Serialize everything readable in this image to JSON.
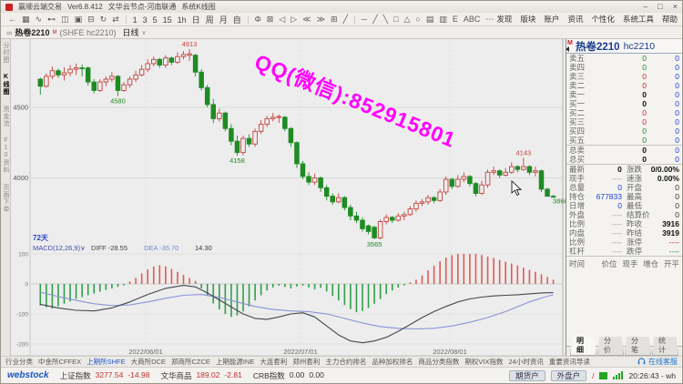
{
  "titlebar": {
    "app": "赢顺云端交易",
    "version": "Ver6.8.412",
    "node": "文华云节点-河南联通",
    "layout": "系统K线图",
    "min": "–",
    "max": "□",
    "close": "×"
  },
  "toolbar": {
    "left_icons": [
      {
        "name": "back-icon",
        "glyph": "←"
      },
      {
        "name": "layout-grid-icon",
        "glyph": "▦"
      },
      {
        "name": "trend-icon",
        "glyph": "∿"
      },
      {
        "name": "link-icon",
        "glyph": "⊷"
      },
      {
        "name": "screenshot-icon",
        "glyph": "◫"
      },
      {
        "name": "image-icon",
        "glyph": "▣"
      },
      {
        "name": "save-icon",
        "glyph": "⊟"
      },
      {
        "name": "refresh-icon",
        "glyph": "↻"
      },
      {
        "name": "compare-icon",
        "glyph": "⇄"
      }
    ],
    "periods": [
      "1",
      "3",
      "5",
      "15",
      "1h",
      "日",
      "周",
      "月",
      "自"
    ],
    "mid_icons": [
      {
        "name": "zoom-icon",
        "glyph": "Φ"
      },
      {
        "name": "crosshair-icon",
        "glyph": "⊠"
      },
      {
        "name": "prev-icon",
        "glyph": "◁"
      },
      {
        "name": "next-icon",
        "glyph": "▷"
      },
      {
        "name": "zoom-out-icon",
        "glyph": "≪"
      },
      {
        "name": "zoom-in-icon",
        "glyph": "≫"
      },
      {
        "name": "grid-icon",
        "glyph": "⊞"
      },
      {
        "name": "line-mode-icon",
        "glyph": "╱"
      }
    ],
    "draw_icons": [
      {
        "name": "hline-draw-icon",
        "glyph": "─"
      },
      {
        "name": "upline-draw-icon",
        "glyph": "╱"
      },
      {
        "name": "downline-draw-icon",
        "glyph": "╲"
      },
      {
        "name": "rect-draw-icon",
        "glyph": "□"
      },
      {
        "name": "triangle-draw-icon",
        "glyph": "△"
      },
      {
        "name": "circle-draw-icon",
        "glyph": "○"
      },
      {
        "name": "fib-draw-icon",
        "glyph": "▤"
      },
      {
        "name": "channel-draw-icon",
        "glyph": "▥"
      },
      {
        "name": "bracket-draw-icon",
        "glyph": "E"
      },
      {
        "name": "text-draw-icon",
        "glyph": "ABC"
      },
      {
        "name": "more-icon",
        "glyph": "⋯"
      }
    ],
    "menus": [
      "发现",
      "版块",
      "账户",
      "资讯",
      "个性化",
      "系统工具",
      "帮助"
    ]
  },
  "chart_header": {
    "link_icon": "∞",
    "symbol": "热卷2210",
    "sup": "M",
    "code": "(SHFE hc2210)",
    "period": "日线",
    "caret": "∨"
  },
  "left_tabs": [
    {
      "label": "分时图",
      "active": false
    },
    {
      "label": "K线图",
      "active": true
    },
    {
      "label": "资金流",
      "active": false
    },
    {
      "label": "F10资料",
      "active": false
    },
    {
      "label": "页面下单",
      "active": false
    }
  ],
  "watermark": "QQ(微信):852915801",
  "indicator": {
    "window_label": "72天",
    "name": "MACD(12,26,9)∨",
    "diff_label": "DIFF",
    "diff": "-28.55",
    "dea_label": "DEA",
    "dea": "-35.70",
    "bar": "14.30"
  },
  "chart_data": {
    "type": "candlestick+macd",
    "title": "热卷2210 (SHFE hc2210) 日线",
    "up_color": "#c5433d",
    "down_color": "#1f8b23",
    "hist_up_color": "#e05a52",
    "hist_down_color": "#2f9e49",
    "diff_color": "#44474f",
    "dea_color": "#8b93d6",
    "price_axis": [
      4500,
      4000
    ],
    "macd_axis": [
      100,
      0,
      -100,
      -200
    ],
    "x_dates": [
      "2022/06/01",
      "2022/07/01",
      "2022/08/01"
    ],
    "candles": [
      [
        4700,
        4710,
        4590,
        4650
      ],
      [
        4650,
        4740,
        4640,
        4720
      ],
      [
        4720,
        4790,
        4700,
        4760
      ],
      [
        4760,
        4775,
        4710,
        4730
      ],
      [
        4730,
        4785,
        4690,
        4745
      ],
      [
        4745,
        4800,
        4720,
        4770
      ],
      [
        4770,
        4810,
        4730,
        4780
      ],
      [
        4780,
        4805,
        4720,
        4775
      ],
      [
        4780,
        4790,
        4655,
        4680
      ],
      [
        4680,
        4700,
        4600,
        4620
      ],
      [
        4620,
        4700,
        4610,
        4680
      ],
      [
        4680,
        4720,
        4650,
        4700
      ],
      [
        4700,
        4750,
        4680,
        4720
      ],
      [
        4720,
        4730,
        4580,
        4620
      ],
      [
        4620,
        4680,
        4610,
        4660
      ],
      [
        4660,
        4720,
        4640,
        4700
      ],
      [
        4700,
        4760,
        4680,
        4730
      ],
      [
        4730,
        4800,
        4720,
        4770
      ],
      [
        4770,
        4840,
        4750,
        4810
      ],
      [
        4810,
        4860,
        4790,
        4840
      ],
      [
        4840,
        4850,
        4780,
        4800
      ],
      [
        4800,
        4870,
        4780,
        4850
      ],
      [
        4850,
        4860,
        4800,
        4820
      ],
      [
        4820,
        4890,
        4810,
        4860
      ],
      [
        4860,
        4900,
        4840,
        4875
      ],
      [
        4870,
        4913,
        4830,
        4880
      ],
      [
        4870,
        4880,
        4720,
        4750
      ],
      [
        4750,
        4770,
        4620,
        4640
      ],
      [
        4640,
        4660,
        4500,
        4520
      ],
      [
        4520,
        4560,
        4390,
        4420
      ],
      [
        4420,
        4490,
        4400,
        4460
      ],
      [
        4460,
        4470,
        4330,
        4350
      ],
      [
        4350,
        4380,
        4230,
        4260
      ],
      [
        4260,
        4300,
        4158,
        4180
      ],
      [
        4180,
        4300,
        4160,
        4280
      ],
      [
        4280,
        4310,
        4220,
        4240
      ],
      [
        4240,
        4350,
        4220,
        4330
      ],
      [
        4330,
        4410,
        4310,
        4380
      ],
      [
        4380,
        4440,
        4360,
        4420
      ],
      [
        4420,
        4460,
        4400,
        4430
      ],
      [
        4430,
        4450,
        4390,
        4435
      ],
      [
        4430,
        4440,
        4330,
        4350
      ],
      [
        4350,
        4360,
        4220,
        4250
      ],
      [
        4250,
        4260,
        4070,
        4100
      ],
      [
        4100,
        4120,
        3990,
        4010
      ],
      [
        4010,
        4040,
        3950,
        3970
      ],
      [
        3970,
        4030,
        3950,
        4000
      ],
      [
        4000,
        4010,
        3900,
        3930
      ],
      [
        3930,
        3950,
        3840,
        3870
      ],
      [
        3870,
        3890,
        3810,
        3830
      ],
      [
        3830,
        3890,
        3820,
        3860
      ],
      [
        3860,
        3870,
        3770,
        3790
      ],
      [
        3790,
        3810,
        3700,
        3730
      ],
      [
        3730,
        3760,
        3680,
        3700
      ],
      [
        3700,
        3720,
        3620,
        3640
      ],
      [
        3660,
        3670,
        3600,
        3620
      ],
      [
        3650,
        3660,
        3565,
        3575
      ],
      [
        3575,
        3705,
        3565,
        3690
      ],
      [
        3690,
        3740,
        3670,
        3720
      ],
      [
        3720,
        3730,
        3680,
        3700
      ],
      [
        3700,
        3750,
        3690,
        3730
      ],
      [
        3730,
        3760,
        3700,
        3740
      ],
      [
        3740,
        3800,
        3730,
        3780
      ],
      [
        3780,
        3840,
        3760,
        3820
      ],
      [
        3820,
        3850,
        3800,
        3830
      ],
      [
        3830,
        3880,
        3810,
        3860
      ],
      [
        3860,
        3870,
        3820,
        3840
      ],
      [
        3840,
        3920,
        3830,
        3900
      ],
      [
        3900,
        4010,
        3880,
        3990
      ],
      [
        3990,
        4000,
        3920,
        3940
      ],
      [
        3940,
        4020,
        3930,
        3990
      ],
      [
        3990,
        4040,
        3970,
        4010
      ],
      [
        4010,
        4020,
        3940,
        3960
      ],
      [
        3960,
        3970,
        3870,
        3890
      ],
      [
        3890,
        3980,
        3880,
        3950
      ],
      [
        3950,
        4060,
        3930,
        4040
      ],
      [
        4040,
        4080,
        4020,
        4050
      ],
      [
        4050,
        4060,
        4000,
        4020
      ],
      [
        4020,
        4070,
        4010,
        4040
      ],
      [
        4040,
        4110,
        4030,
        4080
      ],
      [
        4080,
        4090,
        4040,
        4060
      ],
      [
        4060,
        4143,
        4050,
        4080
      ],
      [
        4080,
        4090,
        4020,
        4040
      ],
      [
        4040,
        4080,
        4010,
        4050
      ],
      [
        4050,
        4060,
        3900,
        3920
      ],
      [
        3920,
        3930,
        3866,
        3870
      ],
      [
        3870,
        3880,
        3860,
        3868
      ]
    ],
    "macd_hist": [
      -72,
      -78,
      -82,
      -75,
      -66,
      -58,
      -50,
      -44,
      -38,
      -32,
      -26,
      -20,
      -15,
      -10,
      -5,
      8,
      20,
      35,
      48,
      58,
      62,
      58,
      50,
      40,
      30,
      20,
      10,
      -15,
      -40,
      -65,
      -85,
      -100,
      -110,
      -105,
      -92,
      -75,
      -55,
      -38,
      -22,
      -12,
      -6,
      -10,
      -15,
      -9,
      -6,
      -12,
      -18,
      -13,
      -25,
      -40,
      -55,
      -70,
      -84,
      -94,
      -90,
      -80,
      -66,
      -50,
      -34,
      -22,
      -12,
      -5,
      5,
      14,
      28,
      45,
      60,
      75,
      88,
      96,
      102,
      104,
      103,
      100,
      96,
      91,
      86,
      80,
      74,
      68,
      61,
      54,
      47,
      40,
      32,
      23,
      14
    ],
    "diff_points": [
      [
        0,
        -68
      ],
      [
        3,
        -80
      ],
      [
        6,
        -88
      ],
      [
        9,
        -90
      ],
      [
        12,
        -80
      ],
      [
        15,
        -60
      ],
      [
        18,
        -35
      ],
      [
        21,
        -15
      ],
      [
        24,
        -5
      ],
      [
        26,
        -10
      ],
      [
        28,
        -30
      ],
      [
        31,
        -65
      ],
      [
        34,
        -100
      ],
      [
        36,
        -115
      ],
      [
        38,
        -118
      ],
      [
        40,
        -110
      ],
      [
        42,
        -100
      ],
      [
        44,
        -96
      ],
      [
        46,
        -110
      ],
      [
        48,
        -140
      ],
      [
        50,
        -170
      ],
      [
        52,
        -190
      ],
      [
        54,
        -196
      ],
      [
        56,
        -190
      ],
      [
        58,
        -178
      ],
      [
        60,
        -158
      ],
      [
        62,
        -135
      ],
      [
        64,
        -112
      ],
      [
        66,
        -92
      ],
      [
        68,
        -75
      ],
      [
        70,
        -60
      ],
      [
        72,
        -50
      ],
      [
        74,
        -44
      ],
      [
        76,
        -40
      ],
      [
        78,
        -38
      ],
      [
        80,
        -36
      ],
      [
        82,
        -33
      ],
      [
        84,
        -30
      ],
      [
        86,
        -29
      ]
    ],
    "dea_points": [
      [
        0,
        -28
      ],
      [
        3,
        -42
      ],
      [
        6,
        -55
      ],
      [
        9,
        -66
      ],
      [
        12,
        -72
      ],
      [
        15,
        -70
      ],
      [
        18,
        -60
      ],
      [
        21,
        -48
      ],
      [
        24,
        -38
      ],
      [
        27,
        -35
      ],
      [
        30,
        -45
      ],
      [
        33,
        -60
      ],
      [
        36,
        -75
      ],
      [
        39,
        -85
      ],
      [
        42,
        -90
      ],
      [
        45,
        -92
      ],
      [
        48,
        -100
      ],
      [
        51,
        -115
      ],
      [
        54,
        -130
      ],
      [
        57,
        -142
      ],
      [
        60,
        -148
      ],
      [
        63,
        -150
      ],
      [
        66,
        -148
      ],
      [
        69,
        -140
      ],
      [
        72,
        -128
      ],
      [
        75,
        -112
      ],
      [
        78,
        -92
      ],
      [
        80,
        -76
      ],
      [
        82,
        -60
      ],
      [
        84,
        -47
      ],
      [
        86,
        -36
      ]
    ],
    "annotations": [
      {
        "text": "4913",
        "i": 25,
        "pos": "above"
      },
      {
        "text": "4580",
        "i": 13,
        "pos": "below"
      },
      {
        "text": "4158",
        "i": 33,
        "pos": "below"
      },
      {
        "text": "3565",
        "i": 56,
        "pos": "below"
      },
      {
        "text": "4143",
        "i": 81,
        "pos": "above"
      },
      {
        "text": "3866",
        "i": 85,
        "pos": "right"
      }
    ]
  },
  "quote_panel": {
    "marker": "M",
    "title": "热卷2210",
    "code": "hc2210",
    "depth_rows": [
      {
        "label": "卖五",
        "v": "0",
        "k": "g",
        "v2": "0"
      },
      {
        "label": "卖四",
        "v": "0",
        "k": "g",
        "v2": "0"
      },
      {
        "label": "卖三",
        "v": "0",
        "k": "r",
        "v2": "0"
      },
      {
        "label": "卖二",
        "v": "0",
        "k": "r",
        "v2": "0"
      },
      {
        "label": "卖一",
        "v": "0",
        "k": "k",
        "v2": "0"
      },
      {
        "label": "买一",
        "v": "0",
        "k": "k",
        "v2": "0"
      },
      {
        "label": "买二",
        "v": "0",
        "k": "r",
        "v2": "0"
      },
      {
        "label": "买三",
        "v": "0",
        "k": "r",
        "v2": "0"
      },
      {
        "label": "买四",
        "v": "0",
        "k": "g",
        "v2": "0"
      },
      {
        "label": "买五",
        "v": "0",
        "k": "g",
        "v2": "0"
      }
    ],
    "sum_rows": [
      {
        "label": "总卖",
        "v": "0",
        "v2": "0"
      },
      {
        "label": "总买",
        "v": "0",
        "v2": "0"
      }
    ],
    "info_rows": [
      {
        "l1": "最新",
        "v1": "0",
        "k1": "k",
        "l2": "涨跌",
        "v2": "0/0.00%",
        "k2": "k"
      },
      {
        "l1": "现手",
        "v1": "----",
        "k1": "d",
        "l2": "速涨",
        "v2": "0.00%",
        "k2": "k"
      },
      {
        "l1": "总量",
        "v1": "0",
        "k1": "b",
        "l2": "开盘",
        "v2": "0",
        "k2": "n"
      },
      {
        "l1": "持仓",
        "v1": "677833",
        "k1": "b",
        "l2": "最高",
        "v2": "0",
        "k2": "n"
      },
      {
        "l1": "日增",
        "v1": "0",
        "k1": "b",
        "l2": "最低",
        "v2": "0",
        "k2": "n"
      },
      {
        "l1": "外盘",
        "v1": "----",
        "k1": "d",
        "l2": "结算价",
        "v2": "0",
        "k2": "n"
      },
      {
        "l1": "比例",
        "v1": "----",
        "k1": "d",
        "l2": "昨收",
        "v2": "3916",
        "k2": "k"
      },
      {
        "l1": "内盘",
        "v1": "----",
        "k1": "d",
        "l2": "昨结",
        "v2": "3919",
        "k2": "k"
      },
      {
        "l1": "比例",
        "v1": "----",
        "k1": "d",
        "l2": "涨停",
        "v2": "----",
        "k2": "r"
      },
      {
        "l1": "杠杆",
        "v1": "----",
        "k1": "d",
        "l2": "跌停",
        "v2": "----",
        "k2": "g"
      }
    ],
    "trade_header": [
      "时间",
      "价位",
      "现手",
      "增仓",
      "开平"
    ],
    "tabs": [
      "明细",
      "分价",
      "分笔",
      "统计"
    ]
  },
  "bottom_tabs": [
    "行业分类",
    "中金所CFFEX",
    "上期所SHFE",
    "大商所DCE",
    "郑商所CZCE",
    "上期能源INE",
    "大连套利",
    "郑州套利",
    "主力合约排名",
    "品种加权排名",
    "商品分类指数",
    "期权VIX指数",
    "24小时资讯",
    "重要资讯导读"
  ],
  "bottom_active_index": 2,
  "service_label": "在线客服",
  "status_bar": {
    "logo": "webstock",
    "groups": [
      {
        "label": "上证指数",
        "value": "3277.54",
        "change": "-14.98",
        "k": "r"
      },
      {
        "label": "文华商品",
        "value": "189.02",
        "change": "-2.81",
        "k": "r"
      },
      {
        "label": "CRB指数",
        "value": "0.00",
        "change": "0.00",
        "k": "n"
      }
    ],
    "acct1": "期货户",
    "acct2": "外盘户",
    "slash": "/",
    "time": "20:26:43 - wh"
  },
  "colors": {
    "accent_blue": "#2255cc",
    "up_red": "#c5433d",
    "down_green": "#1f8b23",
    "watermark_magenta": "#ff00ff"
  }
}
